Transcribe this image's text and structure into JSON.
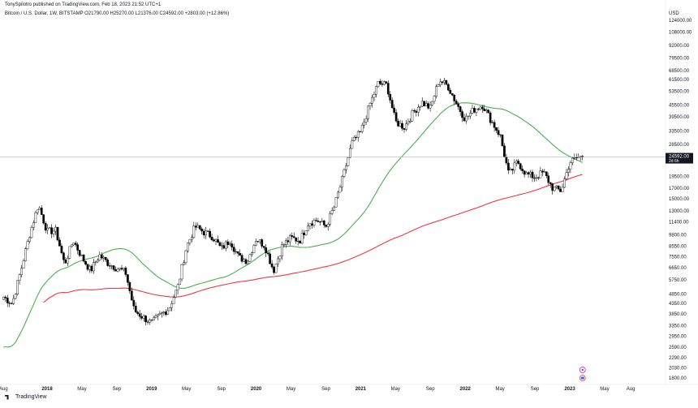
{
  "header": {
    "publisher": "TonySpilotro published on TradingView.com, Feb 18, 2023 21:52 UTC+1",
    "symbol_line": "Bitcoin / U.S. Dollar, 1W, BITSTAMP  O21790.00  H25270.00  L21376.00  C24592.00  +2803.00 (+12.86%)"
  },
  "brand": {
    "label": "TradingView"
  },
  "colors": {
    "up": "#ffffff",
    "down": "#000000",
    "wick": "#000000",
    "ma_fast": "#4caf50",
    "ma_slow": "#f23645",
    "current_line": "#b2b5be",
    "price_tag_bg": "#131722",
    "price_tag_text": "#ffffff"
  },
  "chart_data": {
    "type": "candlestick",
    "scale": "log",
    "axis_currency": "USD",
    "y_ticks": [
      124000,
      108000,
      92000,
      79500,
      68500,
      61500,
      53500,
      45500,
      39500,
      33500,
      28500,
      24592,
      19500,
      17000,
      15000,
      13000,
      11400,
      9800,
      8550,
      7550,
      6650,
      5750,
      4850,
      4350,
      3850,
      3350,
      2950,
      2590,
      2290,
      2030,
      1800
    ],
    "y_tick_labels": [
      "124000.00",
      "108000.00",
      "92000.00",
      "79500.00",
      "68500.00",
      "61500.00",
      "53500.00",
      "45500.00",
      "39500.00",
      "33500.00",
      "28500.00",
      "",
      "19500.00",
      "17000.00",
      "15000.00",
      "13000.00",
      "11400.00",
      "9800.00",
      "8550.00",
      "7550.00",
      "6650.00",
      "5750.00",
      "4850.00",
      "4350.00",
      "3850.00",
      "3350.00",
      "2950.00",
      "2590.00",
      "2290.00",
      "2030.00",
      "1800.00"
    ],
    "x_ticks": [
      {
        "date": "2017-08",
        "label": "Aug",
        "bold": false
      },
      {
        "date": "2018-01",
        "label": "2018",
        "bold": true
      },
      {
        "date": "2018-05",
        "label": "May",
        "bold": false
      },
      {
        "date": "2018-09",
        "label": "Sep",
        "bold": false
      },
      {
        "date": "2019-01",
        "label": "2019",
        "bold": true
      },
      {
        "date": "2019-05",
        "label": "May",
        "bold": false
      },
      {
        "date": "2019-09",
        "label": "Sep",
        "bold": false
      },
      {
        "date": "2020-01",
        "label": "2020",
        "bold": true
      },
      {
        "date": "2020-05",
        "label": "May",
        "bold": false
      },
      {
        "date": "2020-09",
        "label": "Sep",
        "bold": false
      },
      {
        "date": "2021-01",
        "label": "2021",
        "bold": true
      },
      {
        "date": "2021-05",
        "label": "May",
        "bold": false
      },
      {
        "date": "2021-09",
        "label": "Sep",
        "bold": false
      },
      {
        "date": "2022-01",
        "label": "2022",
        "bold": true
      },
      {
        "date": "2022-05",
        "label": "May",
        "bold": false
      },
      {
        "date": "2022-09",
        "label": "Sep",
        "bold": false
      },
      {
        "date": "2023-01",
        "label": "2023",
        "bold": true
      },
      {
        "date": "2023-05",
        "label": "May",
        "bold": false
      },
      {
        "date": "2023-08",
        "label": "Aug",
        "bold": false
      }
    ],
    "current_price": {
      "value": 24592,
      "label": "24592.00",
      "countdown": "2d 6h"
    },
    "monthly_close": [
      {
        "date": "2017-08",
        "close": 4700
      },
      {
        "date": "2017-09",
        "close": 4340
      },
      {
        "date": "2017-10",
        "close": 6450
      },
      {
        "date": "2017-11",
        "close": 9900
      },
      {
        "date": "2017-12",
        "close": 14000
      },
      {
        "date": "2018-01",
        "close": 10200
      },
      {
        "date": "2018-02",
        "close": 10300
      },
      {
        "date": "2018-03",
        "close": 6900
      },
      {
        "date": "2018-04",
        "close": 9200
      },
      {
        "date": "2018-05",
        "close": 7500
      },
      {
        "date": "2018-06",
        "close": 6400
      },
      {
        "date": "2018-07",
        "close": 7700
      },
      {
        "date": "2018-08",
        "close": 7000
      },
      {
        "date": "2018-09",
        "close": 6600
      },
      {
        "date": "2018-10",
        "close": 6300
      },
      {
        "date": "2018-11",
        "close": 4000
      },
      {
        "date": "2018-12",
        "close": 3700
      },
      {
        "date": "2019-01",
        "close": 3450
      },
      {
        "date": "2019-02",
        "close": 3800
      },
      {
        "date": "2019-03",
        "close": 4100
      },
      {
        "date": "2019-04",
        "close": 5300
      },
      {
        "date": "2019-05",
        "close": 8500
      },
      {
        "date": "2019-06",
        "close": 10800
      },
      {
        "date": "2019-07",
        "close": 10100
      },
      {
        "date": "2019-08",
        "close": 9600
      },
      {
        "date": "2019-09",
        "close": 8300
      },
      {
        "date": "2019-10",
        "close": 9200
      },
      {
        "date": "2019-11",
        "close": 7500
      },
      {
        "date": "2019-12",
        "close": 7200
      },
      {
        "date": "2020-01",
        "close": 9350
      },
      {
        "date": "2020-02",
        "close": 8600
      },
      {
        "date": "2020-03",
        "close": 6400
      },
      {
        "date": "2020-04",
        "close": 8600
      },
      {
        "date": "2020-05",
        "close": 9450
      },
      {
        "date": "2020-06",
        "close": 9150
      },
      {
        "date": "2020-07",
        "close": 11300
      },
      {
        "date": "2020-08",
        "close": 11650
      },
      {
        "date": "2020-09",
        "close": 10800
      },
      {
        "date": "2020-10",
        "close": 13800
      },
      {
        "date": "2020-11",
        "close": 19700
      },
      {
        "date": "2020-12",
        "close": 29000
      },
      {
        "date": "2021-01",
        "close": 33100
      },
      {
        "date": "2021-02",
        "close": 45200
      },
      {
        "date": "2021-03",
        "close": 58800
      },
      {
        "date": "2021-04",
        "close": 57700
      },
      {
        "date": "2021-05",
        "close": 37300
      },
      {
        "date": "2021-06",
        "close": 35000
      },
      {
        "date": "2021-07",
        "close": 41500
      },
      {
        "date": "2021-08",
        "close": 47100
      },
      {
        "date": "2021-09",
        "close": 43800
      },
      {
        "date": "2021-10",
        "close": 61300
      },
      {
        "date": "2021-11",
        "close": 57000
      },
      {
        "date": "2021-12",
        "close": 46300
      },
      {
        "date": "2022-01",
        "close": 38500
      },
      {
        "date": "2022-02",
        "close": 43200
      },
      {
        "date": "2022-03",
        "close": 45500
      },
      {
        "date": "2022-04",
        "close": 37700
      },
      {
        "date": "2022-05",
        "close": 31800
      },
      {
        "date": "2022-06",
        "close": 19900
      },
      {
        "date": "2022-07",
        "close": 23300
      },
      {
        "date": "2022-08",
        "close": 20100
      },
      {
        "date": "2022-09",
        "close": 19400
      },
      {
        "date": "2022-10",
        "close": 20500
      },
      {
        "date": "2022-11",
        "close": 17100
      },
      {
        "date": "2022-12",
        "close": 16500
      },
      {
        "date": "2023-01",
        "close": 23100
      },
      {
        "date": "2023-02",
        "close": 24592
      }
    ]
  }
}
